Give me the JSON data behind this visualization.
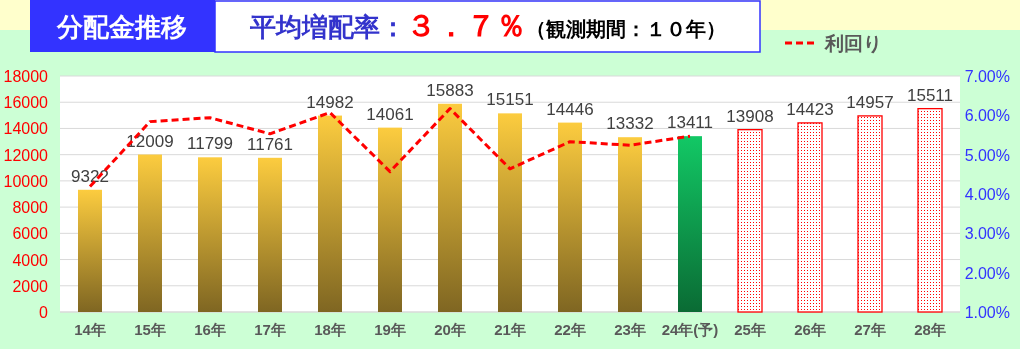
{
  "chart_data": {
    "type": "bar",
    "title": "分配金推移",
    "subtitle": "平均増配率：３．７％（観測期間：１０年）",
    "categories": [
      "14年",
      "15年",
      "16年",
      "17年",
      "18年",
      "19年",
      "20年",
      "21年",
      "22年",
      "23年",
      "24年(予)",
      "25年",
      "26年",
      "27年",
      "28年"
    ],
    "series": [
      {
        "colors": [
          "#fccc3f",
          "#fccc3f",
          "#fccc3f",
          "#fccc3f",
          "#fccc3f",
          "#fccc3f",
          "#fccc3f",
          "#fccc3f",
          "#fccc3f",
          "#fccc3f",
          "#12c865",
          "#ff0000",
          "#ff0000",
          "#ff0000",
          "#ff0000"
        ],
        "values": [
          9322,
          12009,
          11799,
          11761,
          14982,
          14061,
          15883,
          15151,
          14446,
          13332,
          13411,
          13908,
          14423,
          14957,
          15511
        ],
        "value_labels": [
          "9322",
          "12009",
          "11799",
          "11761",
          "14982",
          "14061",
          "15883",
          "15151",
          "14446",
          "13332",
          "13411",
          "13908",
          "14423",
          "14957",
          "15511"
        ]
      },
      {
        "type": "line",
        "name": "利回り",
        "axis": "y2",
        "color": "#ff0000",
        "line_style": "dashed",
        "values": [
          4.19,
          5.84,
          5.94,
          5.53,
          6.07,
          4.57,
          6.17,
          4.64,
          5.33,
          5.24,
          5.47,
          null,
          null,
          null,
          null
        ]
      }
    ],
    "ylim": [
      0,
      18000
    ],
    "yticks": [
      0,
      2000,
      4000,
      6000,
      8000,
      10000,
      12000,
      14000,
      16000,
      18000
    ],
    "y2lim": [
      1,
      7
    ],
    "y2ticks": [
      {
        "value": 1,
        "label": "1.00%"
      },
      {
        "value": 2,
        "label": "2.00%"
      },
      {
        "value": 3,
        "label": "3.00%"
      },
      {
        "value": 4,
        "label": "4.00%"
      },
      {
        "value": 5,
        "label": "5.00%"
      },
      {
        "value": 6,
        "label": "6.00%"
      },
      {
        "value": 7,
        "label": "7.00%"
      }
    ],
    "grid": "y",
    "legend": "top right"
  }
}
